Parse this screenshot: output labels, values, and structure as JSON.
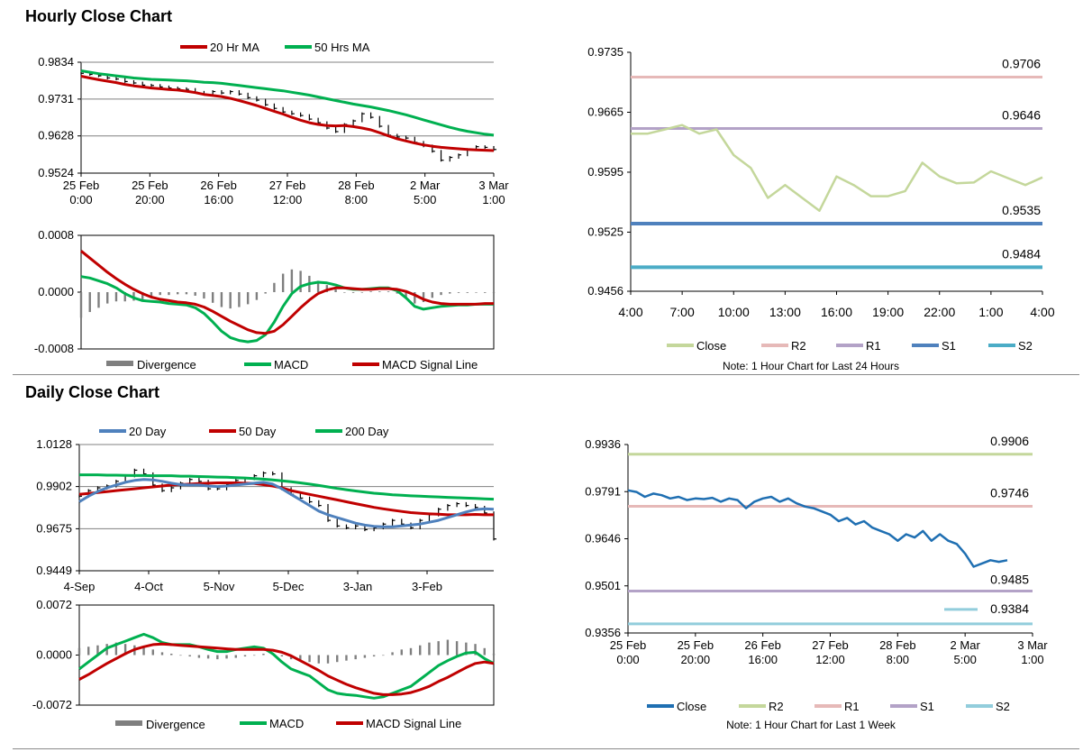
{
  "sections": {
    "hourly_title": "Hourly Close Chart",
    "daily_title": "Daily Close Chart"
  },
  "colors": {
    "ma20h": "#c00000",
    "ma50h": "#00b050",
    "divergence": "#7f7f7f",
    "macd": "#00b050",
    "signal": "#c00000",
    "close_light": "#c4d79b",
    "r2_light": "#e6b9b8",
    "r1_light": "#b3a2c7",
    "s1_dark": "#4f81bd",
    "s2_teal": "#4bacc6",
    "ma20d": "#4f81bd",
    "ma50d": "#c00000",
    "ma200d": "#00b050",
    "close_week": "#1f6fb2",
    "r2_week": "#c4d79b",
    "r1_week": "#e6b9b8",
    "s1_week": "#b3a2c7",
    "s2_week": "#92cddc",
    "grid": "#808080"
  },
  "chart_data": [
    {
      "id": "hourly_price",
      "type": "line",
      "title": "Hourly Close Chart",
      "legend": [
        "20 Hr MA",
        "50 Hrs MA"
      ],
      "ylim": [
        0.9524,
        0.9834
      ],
      "yticks": [
        "0.9834",
        "0.9731",
        "0.9628",
        "0.9524"
      ],
      "xticks": [
        [
          "25 Feb",
          "0:00"
        ],
        [
          "25 Feb",
          "20:00"
        ],
        [
          "26 Feb",
          "16:00"
        ],
        [
          "27 Feb",
          "12:00"
        ],
        [
          "28 Feb",
          "8:00"
        ],
        [
          "2 Mar",
          "5:00"
        ],
        [
          "3 Mar",
          "1:00"
        ]
      ],
      "series": [
        {
          "name": "Price",
          "values": [
            0.9803,
            0.98,
            0.9796,
            0.979,
            0.9787,
            0.978,
            0.9776,
            0.977,
            0.9769,
            0.9765,
            0.9762,
            0.976,
            0.9758,
            0.975,
            0.9745,
            0.9752,
            0.9748,
            0.9752,
            0.9745,
            0.9735,
            0.9728,
            0.9715,
            0.9705,
            0.9695,
            0.969,
            0.9685,
            0.9675,
            0.9665,
            0.965,
            0.964,
            0.966,
            0.967,
            0.969,
            0.968,
            0.9655,
            0.963,
            0.9625,
            0.9622,
            0.961,
            0.96,
            0.9585,
            0.956,
            0.9568,
            0.9575,
            0.959,
            0.9598,
            0.9596,
            0.959
          ]
        },
        {
          "name": "20 Hr MA",
          "values": [
            0.9795,
            0.979,
            0.9785,
            0.9781,
            0.9777,
            0.9772,
            0.9768,
            0.9765,
            0.9762,
            0.976,
            0.9758,
            0.9756,
            0.9753,
            0.9749,
            0.9744,
            0.9741,
            0.9738,
            0.9733,
            0.9727,
            0.972,
            0.9713,
            0.9705,
            0.9697,
            0.9689,
            0.968,
            0.9672,
            0.9665,
            0.966,
            0.9657,
            0.9656,
            0.9657,
            0.9654,
            0.965,
            0.9645,
            0.9637,
            0.9628,
            0.962,
            0.9614,
            0.9608,
            0.9603,
            0.9599,
            0.9596,
            0.9594,
            0.9592,
            0.959,
            0.9589,
            0.9588,
            0.9587
          ]
        },
        {
          "name": "50 Hrs MA",
          "values": [
            0.981,
            0.9806,
            0.9802,
            0.9799,
            0.9796,
            0.9793,
            0.979,
            0.9788,
            0.9786,
            0.9785,
            0.9784,
            0.9783,
            0.9782,
            0.978,
            0.9778,
            0.9777,
            0.9775,
            0.9772,
            0.9769,
            0.9766,
            0.9763,
            0.976,
            0.9757,
            0.9754,
            0.975,
            0.9746,
            0.9742,
            0.9737,
            0.9732,
            0.9727,
            0.9722,
            0.9717,
            0.9713,
            0.9709,
            0.9704,
            0.9699,
            0.9693,
            0.9687,
            0.968,
            0.9673,
            0.9666,
            0.9659,
            0.9652,
            0.9646,
            0.9641,
            0.9637,
            0.9633,
            0.963
          ]
        }
      ]
    },
    {
      "id": "hourly_macd",
      "type": "line",
      "ylim": [
        -0.0008,
        0.0008
      ],
      "yticks": [
        "0.0008",
        "0.0000",
        "-0.0008"
      ],
      "legend": [
        "Divergence",
        "MACD",
        "MACD Signal Line"
      ],
      "series": [
        {
          "name": "MACD",
          "values": [
            0.00022,
            0.0002,
            0.00016,
            0.00012,
            6e-05,
            -2e-05,
            -8e-05,
            -0.00012,
            -0.00013,
            -0.00014,
            -0.00016,
            -0.00017,
            -0.00018,
            -0.00022,
            -0.0003,
            -0.00042,
            -0.00055,
            -0.00064,
            -0.00068,
            -0.0007,
            -0.00068,
            -0.0006,
            -0.00042,
            -0.0002,
            -2e-05,
            8e-05,
            0.00012,
            0.00014,
            0.00013,
            0.0001,
            6e-05,
            4e-05,
            4e-05,
            5e-05,
            6e-05,
            6e-05,
            2e-05,
            -8e-05,
            -0.0002,
            -0.00024,
            -0.00022,
            -0.0002,
            -0.00019,
            -0.00018,
            -0.00018,
            -0.00017,
            -0.00017,
            -0.00017
          ]
        },
        {
          "name": "MACD Signal Line",
          "values": [
            0.00058,
            0.00048,
            0.00038,
            0.00028,
            0.00019,
            0.00011,
            4e-05,
            -2e-05,
            -7e-05,
            -0.0001,
            -0.00012,
            -0.00014,
            -0.00015,
            -0.00017,
            -0.00021,
            -0.00027,
            -0.00034,
            -0.00041,
            -0.00047,
            -0.00053,
            -0.00057,
            -0.00058,
            -0.00055,
            -0.00046,
            -0.00034,
            -0.00022,
            -0.00011,
            -2e-05,
            3e-05,
            6e-05,
            6e-05,
            5e-05,
            4e-05,
            4e-05,
            5e-05,
            5e-05,
            4e-05,
            1e-05,
            -4e-05,
            -0.0001,
            -0.00014,
            -0.00016,
            -0.00017,
            -0.00017,
            -0.00017,
            -0.00017,
            -0.00016,
            -0.00016
          ]
        },
        {
          "name": "Divergence",
          "values": [
            -0.00036,
            -0.00028,
            -0.00022,
            -0.00016,
            -0.00013,
            -0.00013,
            -0.00012,
            -0.0001,
            -6e-05,
            -4e-05,
            -4e-05,
            -3e-05,
            -3e-05,
            -5e-05,
            -9e-05,
            -0.00015,
            -0.00021,
            -0.00023,
            -0.00021,
            -0.00017,
            -0.00011,
            -2e-05,
            0.00013,
            0.00026,
            0.00032,
            0.0003,
            0.00023,
            0.00016,
            0.0001,
            4e-05,
            0.0,
            -1e-05,
            0.0,
            1e-05,
            1e-05,
            1e-05,
            -2e-05,
            -9e-05,
            -0.00016,
            -0.00014,
            -8e-05,
            -4e-05,
            -2e-05,
            -1e-05,
            -1e-05,
            0.0,
            -1e-05,
            -1e-05
          ]
        }
      ]
    },
    {
      "id": "hourly_levels",
      "type": "line",
      "ylim": [
        0.9456,
        0.9735
      ],
      "yticks": [
        "0.9735",
        "0.9665",
        "0.9595",
        "0.9525",
        "0.9456"
      ],
      "xticks": [
        "4:00",
        "7:00",
        "10:00",
        "13:00",
        "16:00",
        "19:00",
        "22:00",
        "1:00",
        "4:00"
      ],
      "legend": [
        "Close",
        "R2",
        "R1",
        "S1",
        "S2"
      ],
      "note": "Note: 1 Hour Chart for Last 24 Hours",
      "levels": [
        {
          "name": "R2",
          "value": 0.9706,
          "label": "0.9706"
        },
        {
          "name": "R1",
          "value": 0.9646,
          "label": "0.9646"
        },
        {
          "name": "S1",
          "value": 0.9535,
          "label": "0.9535"
        },
        {
          "name": "S2",
          "value": 0.9484,
          "label": "0.9484"
        }
      ],
      "series": [
        {
          "name": "Close",
          "values": [
            0.964,
            0.964,
            0.9645,
            0.965,
            0.964,
            0.9645,
            0.9615,
            0.96,
            0.9565,
            0.958,
            0.9565,
            0.955,
            0.959,
            0.958,
            0.9567,
            0.9567,
            0.9573,
            0.9606,
            0.959,
            0.9582,
            0.9583,
            0.9596,
            0.9588,
            0.958,
            0.9589
          ]
        }
      ]
    },
    {
      "id": "daily_price",
      "type": "line",
      "title": "Daily Close Chart",
      "legend": [
        "20 Day",
        "50 Day",
        "200 Day"
      ],
      "ylim": [
        0.9449,
        1.0128
      ],
      "yticks": [
        "1.0128",
        "0.9902",
        "0.9675",
        "0.9449"
      ],
      "xticks": [
        "4-Sep",
        "4-Oct",
        "5-Nov",
        "5-Dec",
        "3-Jan",
        "3-Feb"
      ],
      "series": [
        {
          "name": "Price",
          "values": [
            0.985,
            0.988,
            0.9895,
            0.9905,
            0.993,
            0.996,
            0.999,
            0.997,
            0.991,
            0.988,
            0.9895,
            0.992,
            0.994,
            0.993,
            0.989,
            0.989,
            0.9915,
            0.9935,
            0.9945,
            0.996,
            0.9975,
            0.997,
            0.989,
            0.986,
            0.984,
            0.982,
            0.98,
            0.972,
            0.969,
            0.968,
            0.969,
            0.967,
            0.968,
            0.97,
            0.972,
            0.97,
            0.968,
            0.972,
            0.975,
            0.978,
            0.98,
            0.981,
            0.98,
            0.979,
            0.976,
            0.962
          ]
        },
        {
          "name": "20 Day",
          "values": [
            0.982,
            0.985,
            0.9875,
            0.9895,
            0.991,
            0.9925,
            0.9935,
            0.994,
            0.9938,
            0.993,
            0.992,
            0.9912,
            0.991,
            0.991,
            0.9905,
            0.9902,
            0.9905,
            0.991,
            0.9915,
            0.992,
            0.9925,
            0.9915,
            0.989,
            0.986,
            0.983,
            0.98,
            0.977,
            0.975,
            0.9735,
            0.972,
            0.9705,
            0.9695,
            0.9688,
            0.9685,
            0.9685,
            0.969,
            0.9695,
            0.97,
            0.971,
            0.972,
            0.9735,
            0.975,
            0.9765,
            0.9778,
            0.9782,
            0.978
          ]
        },
        {
          "name": "50 Day",
          "values": [
            0.986,
            0.9865,
            0.987,
            0.9875,
            0.988,
            0.9885,
            0.989,
            0.9895,
            0.99,
            0.9905,
            0.991,
            0.9912,
            0.9915,
            0.9918,
            0.992,
            0.9922,
            0.9922,
            0.9922,
            0.992,
            0.9918,
            0.9912,
            0.9905,
            0.9895,
            0.988,
            0.987,
            0.986,
            0.985,
            0.984,
            0.983,
            0.982,
            0.981,
            0.98,
            0.979,
            0.9782,
            0.9775,
            0.9768,
            0.9762,
            0.9758,
            0.9755,
            0.9753,
            0.975,
            0.975,
            0.975,
            0.9752,
            0.975,
            0.975
          ]
        },
        {
          "name": "200 Day",
          "values": [
            0.9965,
            0.9965,
            0.9965,
            0.9963,
            0.9963,
            0.9962,
            0.9961,
            0.9961,
            0.996,
            0.996,
            0.996,
            0.9958,
            0.9958,
            0.9956,
            0.9955,
            0.9953,
            0.9952,
            0.995,
            0.9948,
            0.9945,
            0.9942,
            0.9938,
            0.9933,
            0.9928,
            0.9922,
            0.9915,
            0.9908,
            0.99,
            0.9892,
            0.9885,
            0.9878,
            0.9872,
            0.9866,
            0.9862,
            0.9858,
            0.9855,
            0.9852,
            0.985,
            0.9848,
            0.9846,
            0.9844,
            0.9842,
            0.984,
            0.9838,
            0.9836,
            0.9834
          ]
        }
      ]
    },
    {
      "id": "daily_macd",
      "type": "line",
      "ylim": [
        -0.0072,
        0.0072
      ],
      "yticks": [
        "0.0072",
        "0.0000",
        "-0.0072"
      ],
      "legend": [
        "Divergence",
        "MACD",
        "MACD Signal Line"
      ],
      "series": [
        {
          "name": "MACD",
          "values": [
            -0.002,
            -0.001,
            0.0,
            0.001,
            0.0015,
            0.002,
            0.0025,
            0.003,
            0.0025,
            0.0018,
            0.0015,
            0.0015,
            0.0015,
            0.0012,
            0.0008,
            0.0005,
            0.0005,
            0.0008,
            0.001,
            0.0012,
            0.001,
            0.0002,
            -0.001,
            -0.002,
            -0.0025,
            -0.003,
            -0.004,
            -0.005,
            -0.0055,
            -0.0057,
            -0.0058,
            -0.006,
            -0.0062,
            -0.006,
            -0.0055,
            -0.005,
            -0.0045,
            -0.0035,
            -0.0025,
            -0.0015,
            -0.0008,
            -0.0002,
            0.0003,
            0.0004,
            -0.0005,
            -0.0012
          ]
        },
        {
          "name": "MACD Signal Line",
          "values": [
            -0.0035,
            -0.0028,
            -0.002,
            -0.0012,
            -0.0005,
            0.0002,
            0.0008,
            0.0012,
            0.0015,
            0.0016,
            0.0015,
            0.0014,
            0.0013,
            0.0012,
            0.0011,
            0.001,
            0.0009,
            0.0008,
            0.0008,
            0.0008,
            0.0008,
            0.0007,
            0.0004,
            -0.0001,
            -0.0008,
            -0.0015,
            -0.0022,
            -0.003,
            -0.0036,
            -0.0042,
            -0.0047,
            -0.0051,
            -0.0055,
            -0.0057,
            -0.0057,
            -0.0056,
            -0.0054,
            -0.005,
            -0.0045,
            -0.0038,
            -0.0032,
            -0.0025,
            -0.0018,
            -0.0012,
            -0.001,
            -0.0012
          ]
        },
        {
          "name": "Divergence",
          "values": [
            0.001,
            0.0012,
            0.0014,
            0.0016,
            0.0018,
            0.0016,
            0.0014,
            0.0012,
            0.0008,
            0.0004,
            0.0002,
            0.0,
            -0.0002,
            -0.0004,
            -0.0005,
            -0.0006,
            -0.0005,
            -0.0004,
            -0.0002,
            0.0,
            0.0002,
            0.0002,
            -0.0002,
            -0.0006,
            -0.0008,
            -0.001,
            -0.0012,
            -0.0012,
            -0.001,
            -0.0008,
            -0.0006,
            -0.0004,
            -0.0002,
            0.0,
            0.0004,
            0.0008,
            0.001,
            0.0014,
            0.0018,
            0.002,
            0.0022,
            0.002,
            0.0018,
            0.0016,
            0.001,
            0.0002
          ]
        }
      ]
    },
    {
      "id": "weekly_levels",
      "type": "line",
      "ylim": [
        0.9356,
        0.9936
      ],
      "yticks": [
        "0.9936",
        "0.9791",
        "0.9646",
        "0.9501",
        "0.9356"
      ],
      "xticks": [
        [
          "25 Feb",
          "0:00"
        ],
        [
          "25 Feb",
          "20:00"
        ],
        [
          "26 Feb",
          "16:00"
        ],
        [
          "27 Feb",
          "12:00"
        ],
        [
          "28 Feb",
          "8:00"
        ],
        [
          "2 Mar",
          "5:00"
        ],
        [
          "3 Mar",
          "1:00"
        ]
      ],
      "legend": [
        "Close",
        "R2",
        "R1",
        "S1",
        "S2"
      ],
      "note": "Note: 1 Hour Chart for Last 1 Week",
      "levels": [
        {
          "name": "R2",
          "value": 0.9906,
          "label": "0.9906"
        },
        {
          "name": "R1",
          "value": 0.9746,
          "label": "0.9746"
        },
        {
          "name": "S1",
          "value": 0.9485,
          "label": "0.9485"
        },
        {
          "name": "S2",
          "value": 0.9384,
          "label": "0.9384"
        }
      ],
      "series": [
        {
          "name": "Close",
          "values": [
            0.9795,
            0.979,
            0.9775,
            0.9785,
            0.978,
            0.977,
            0.9775,
            0.9765,
            0.977,
            0.9768,
            0.9772,
            0.976,
            0.977,
            0.9765,
            0.974,
            0.976,
            0.977,
            0.9775,
            0.976,
            0.977,
            0.9755,
            0.9745,
            0.974,
            0.973,
            0.972,
            0.97,
            0.971,
            0.969,
            0.97,
            0.968,
            0.967,
            0.966,
            0.964,
            0.966,
            0.965,
            0.967,
            0.964,
            0.966,
            0.964,
            0.963,
            0.96,
            0.956,
            0.957,
            0.958,
            0.9575,
            0.958
          ]
        }
      ]
    }
  ]
}
